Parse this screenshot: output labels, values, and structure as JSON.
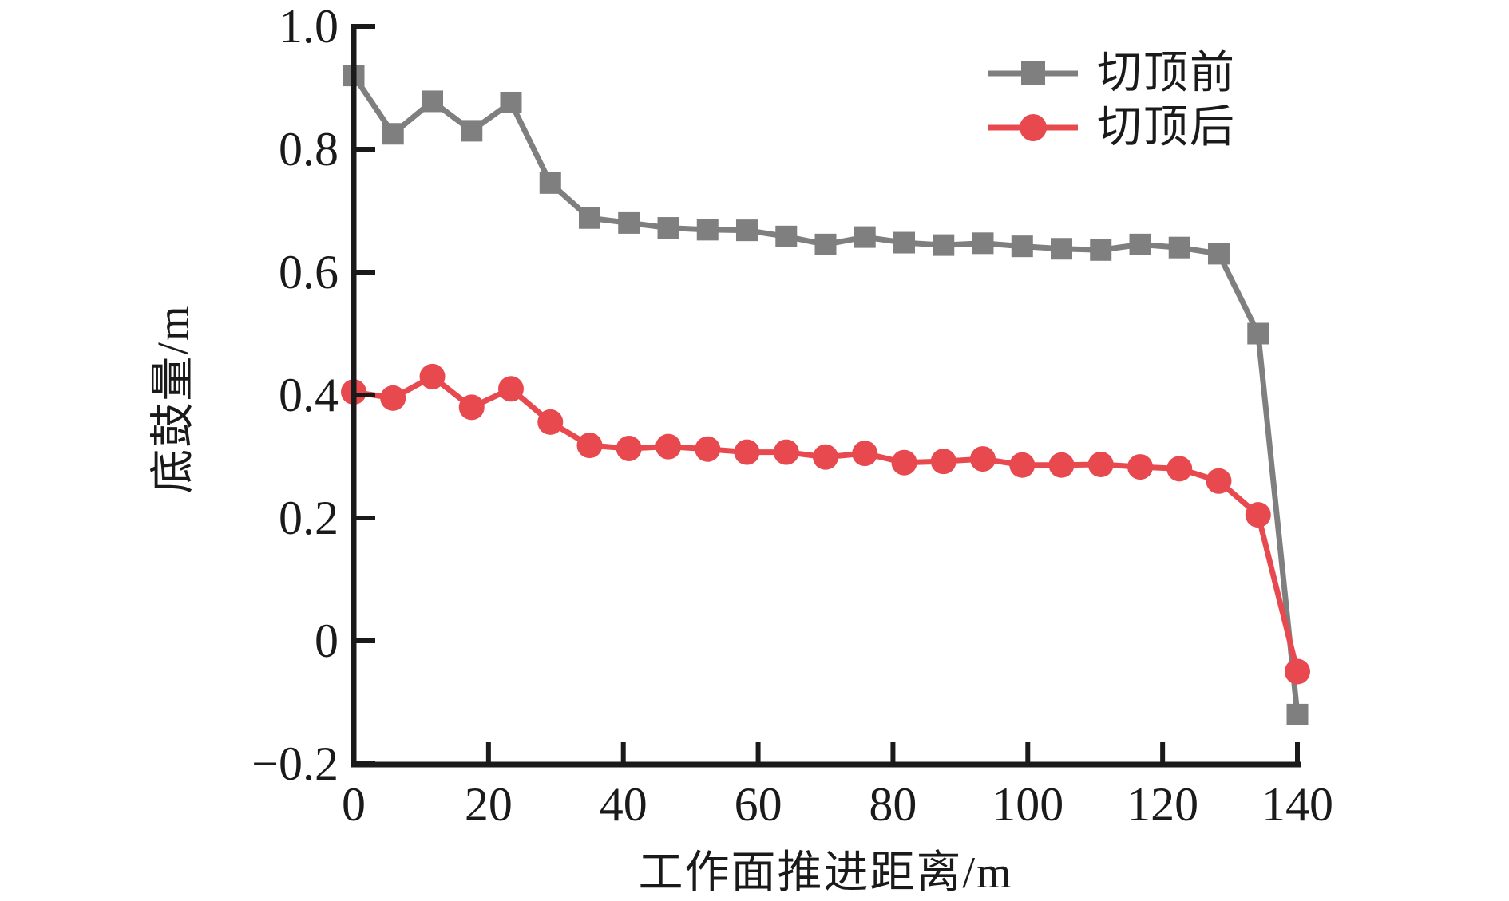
{
  "figure": {
    "background": "#ffffff"
  },
  "chart_data": {
    "type": "line",
    "title": "",
    "xlabel": "工作面推进距离/m",
    "ylabel": "底鼓量/m",
    "xlim": [
      0,
      140
    ],
    "ylim": [
      -0.2,
      1.0
    ],
    "grid": false,
    "legend_position": "top-right-inside",
    "axis_color": "#1a1a1a",
    "x_ticks": [
      0,
      20,
      40,
      60,
      80,
      100,
      120,
      140
    ],
    "x_tick_labels": [
      "0",
      "20",
      "40",
      "60",
      "80",
      "100",
      "120",
      "140"
    ],
    "y_ticks": [
      -0.2,
      0,
      0.2,
      0.4,
      0.6,
      0.8,
      1.0
    ],
    "y_tick_labels": [
      "−0.2",
      "0",
      "0.2",
      "0.4",
      "0.6",
      "0.8",
      "1.0"
    ],
    "x": [
      0,
      5.83,
      11.67,
      17.5,
      23.33,
      29.17,
      35,
      40.83,
      46.67,
      52.5,
      58.33,
      64.17,
      70,
      75.83,
      81.67,
      87.5,
      93.33,
      99.17,
      105,
      110.83,
      116.67,
      122.5,
      128.33,
      134.17,
      140
    ],
    "series": [
      {
        "name": "切顶前",
        "color": "#7f7f7f",
        "marker": "square",
        "values": [
          0.92,
          0.825,
          0.878,
          0.83,
          0.876,
          0.745,
          0.688,
          0.68,
          0.672,
          0.669,
          0.668,
          0.658,
          0.645,
          0.657,
          0.648,
          0.644,
          0.647,
          0.642,
          0.638,
          0.636,
          0.645,
          0.64,
          0.63,
          0.5,
          -0.12
        ]
      },
      {
        "name": "切顶后",
        "color": "#e8494f",
        "marker": "circle",
        "values": [
          0.405,
          0.395,
          0.43,
          0.38,
          0.41,
          0.356,
          0.318,
          0.313,
          0.316,
          0.312,
          0.307,
          0.307,
          0.299,
          0.305,
          0.29,
          0.292,
          0.296,
          0.286,
          0.286,
          0.287,
          0.283,
          0.28,
          0.26,
          0.205,
          -0.05
        ]
      }
    ]
  }
}
